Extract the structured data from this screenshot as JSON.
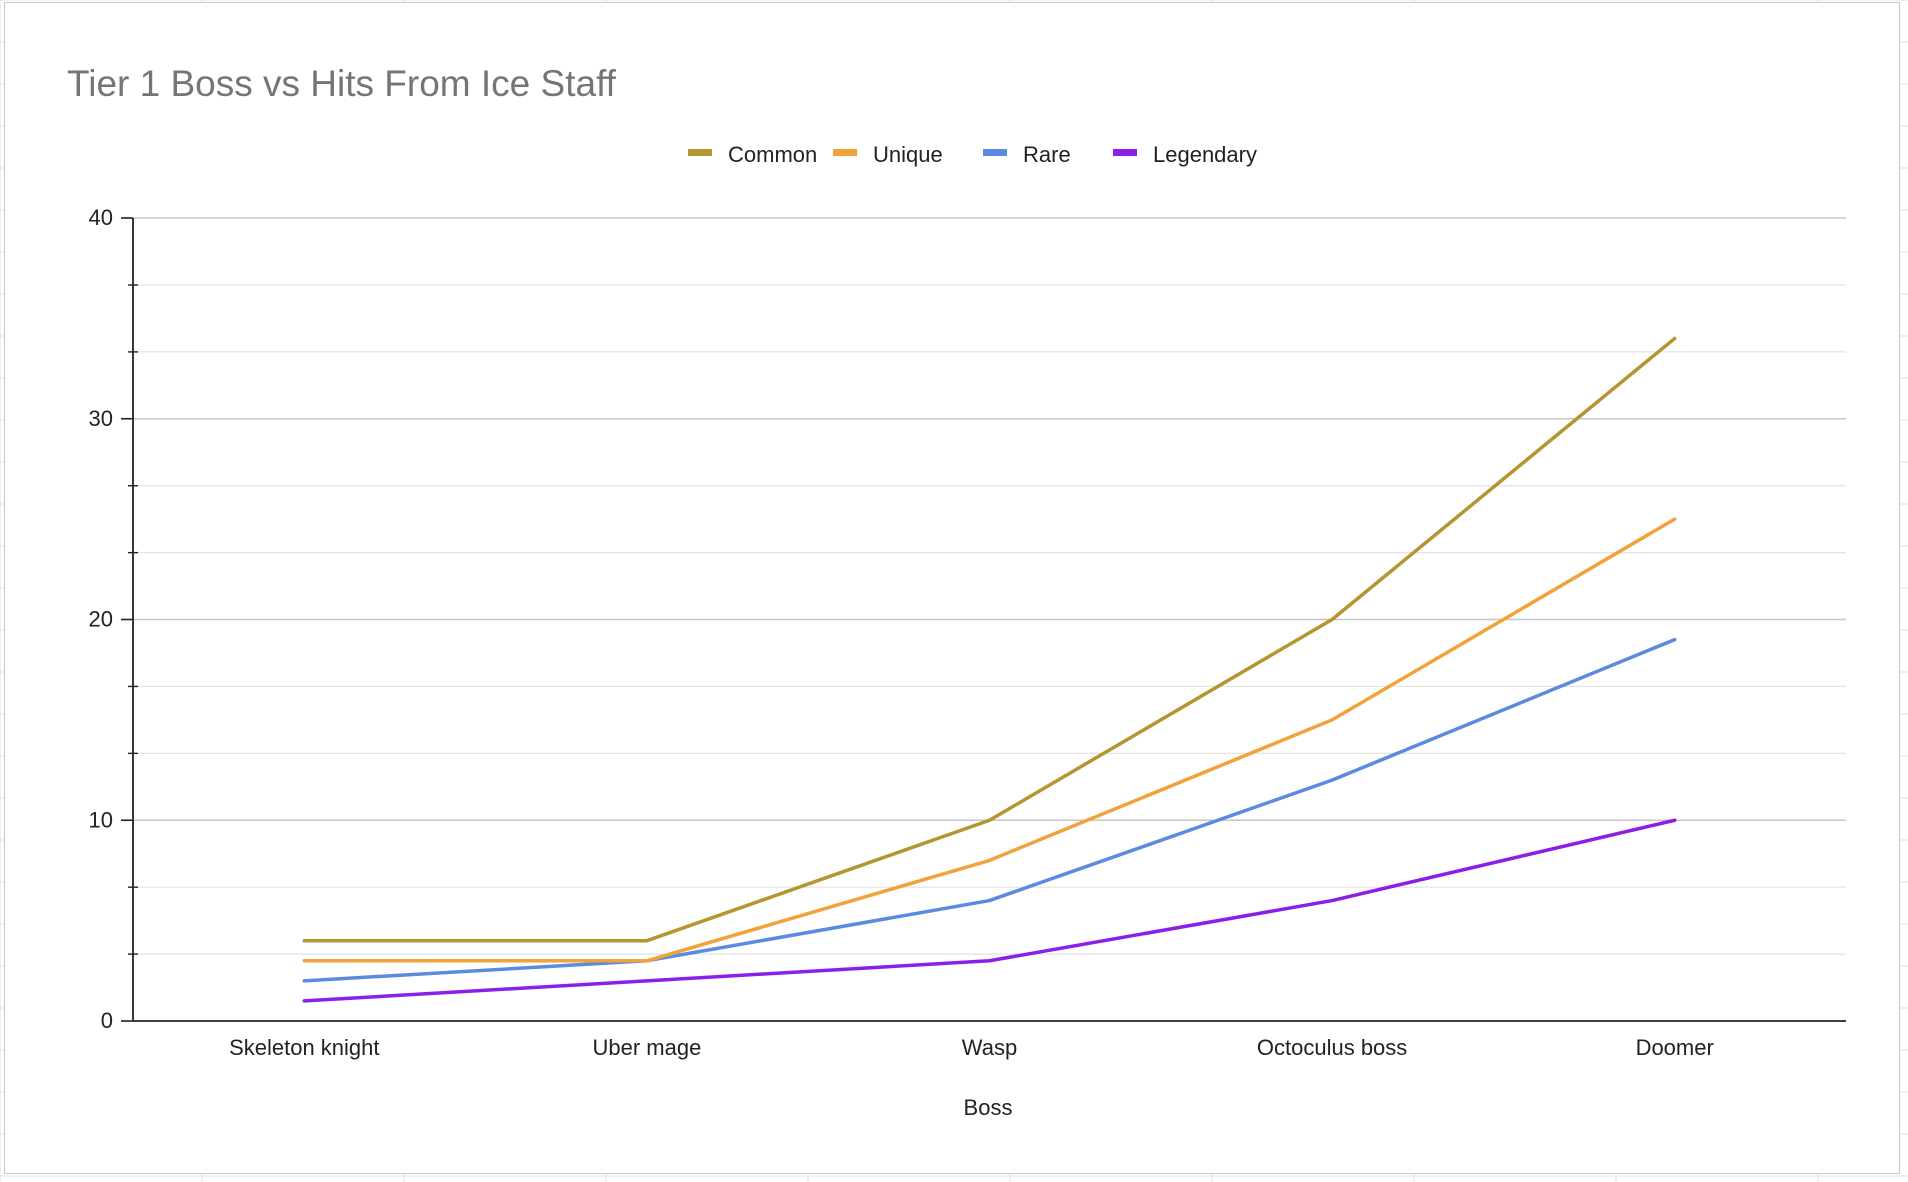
{
  "chart_data": {
    "type": "line",
    "title": "Tier 1 Boss vs Hits From Ice Staff",
    "xlabel": "Boss",
    "ylabel": "",
    "categories": [
      "Skeleton knight",
      "Uber mage",
      "Wasp",
      "Octoculus boss",
      "Doomer"
    ],
    "series": [
      {
        "name": "Common",
        "values": [
          4,
          4,
          10,
          20,
          34
        ],
        "color": "#b5952f"
      },
      {
        "name": "Unique",
        "values": [
          3,
          3,
          8,
          15,
          25
        ],
        "color": "#f1a23a"
      },
      {
        "name": "Rare",
        "values": [
          2,
          3,
          6,
          12,
          19
        ],
        "color": "#5b8ae0"
      },
      {
        "name": "Legendary",
        "values": [
          1,
          2,
          3,
          6,
          10
        ],
        "color": "#8a1fe8"
      }
    ],
    "ylim": [
      0,
      40
    ],
    "yticks": [
      0,
      10,
      20,
      30,
      40
    ],
    "yticks_labels": [
      "0",
      "10",
      "20",
      "30",
      "40"
    ],
    "minor_step": 3.333,
    "grid": true,
    "legend_position": "top"
  }
}
